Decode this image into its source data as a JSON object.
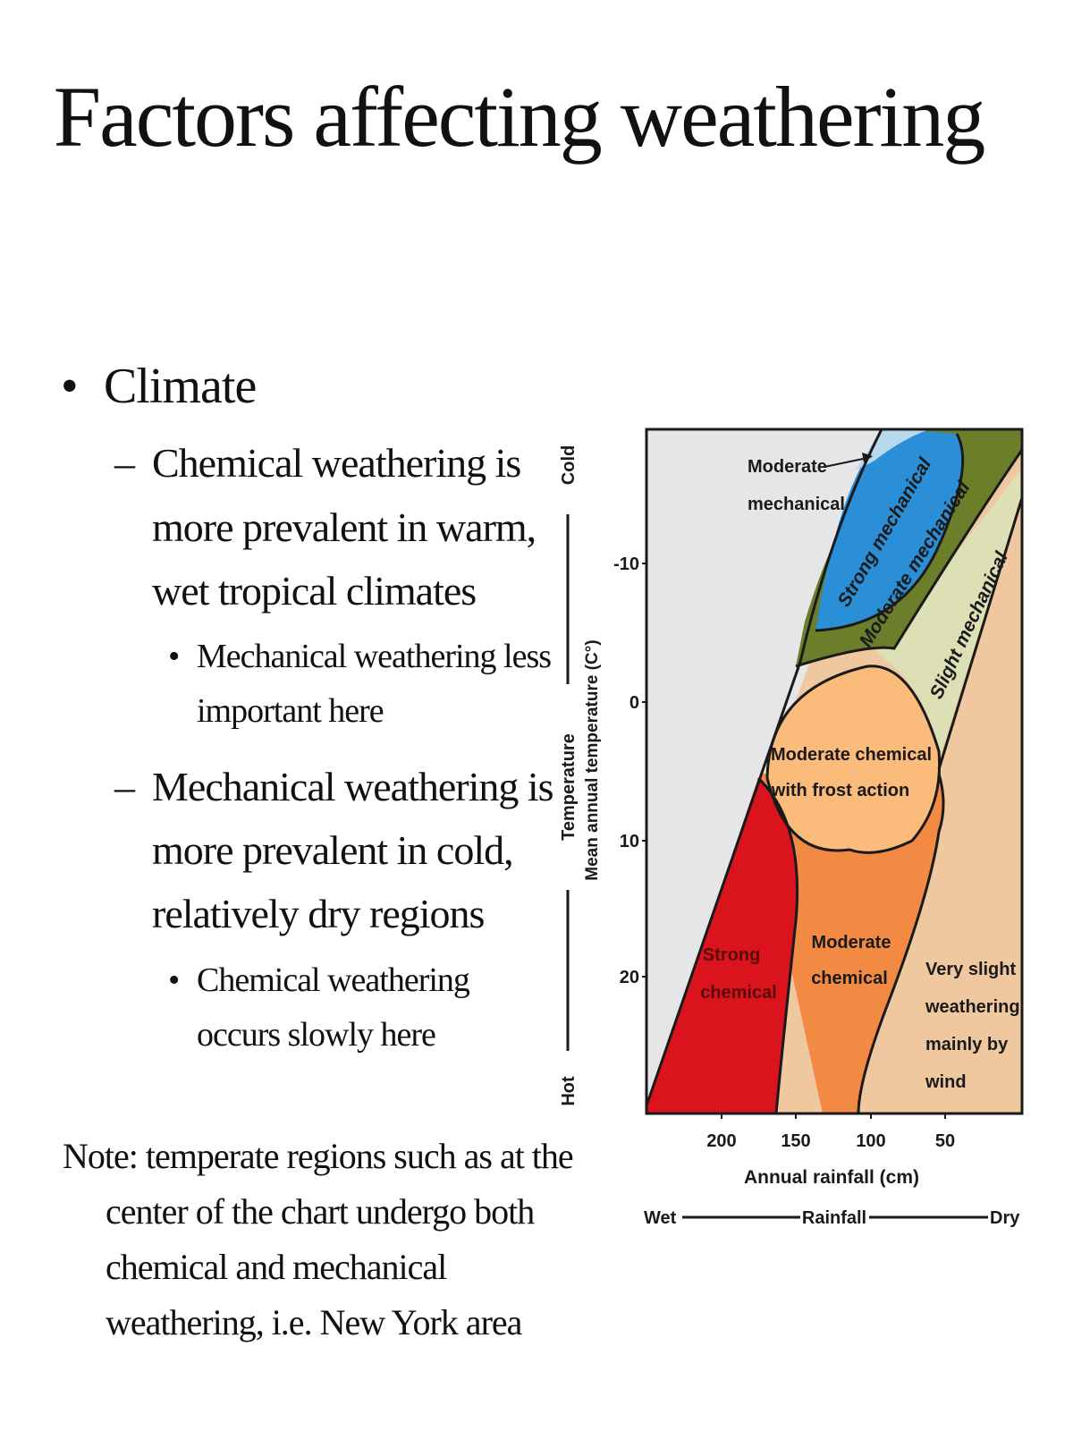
{
  "title": "Factors affecting weathering",
  "bullets": {
    "climate": "Climate",
    "chemical": "Chemical weathering is more prevalent in warm, wet tropical climates",
    "chemical_sub": "Mechanical weathering less important here",
    "mechanical": "Mechanical weathering is more prevalent in cold, relatively dry regions",
    "mechanical_sub": "Chemical weathering occurs slowly here"
  },
  "note": "Note:  temperate regions such as at the center of the chart undergo both chemical and mechanical weathering, i.e. New York area",
  "chart": {
    "y_axis_label": "Mean annual temperature (C°)",
    "y_axis_scale": {
      "hot": "Hot",
      "temperature": "Temperature",
      "cold": "Cold"
    },
    "y_ticks": [
      "-10",
      "0",
      "10",
      "20"
    ],
    "x_ticks": [
      "200",
      "150",
      "100",
      "50"
    ],
    "x_axis_label": "Annual rainfall (cm)",
    "x_axis_scale": {
      "wet": "Wet",
      "rainfall": "Rainfall",
      "dry": "Dry"
    },
    "regions": {
      "moderate_mechanical_1": "Moderate",
      "moderate_mechanical_2": "mechanical",
      "strong_mechanical": "Strong mechanical",
      "moderate_mechanical_band": "Moderate mechanical",
      "slight_mechanical": "Slight mechanical",
      "frost_1": "Moderate chemical",
      "frost_2": "with frost action",
      "strong_chemical_1": "Strong",
      "strong_chemical_2": "chemical",
      "moderate_chemical_1": "Moderate",
      "moderate_chemical_2": "chemical",
      "very_slight_1": "Very slight",
      "very_slight_2": "weathering",
      "very_slight_3": "mainly by",
      "very_slight_4": "wind"
    },
    "colors": {
      "background": "#e6e6e9",
      "very_slight": "#f0c8a0",
      "slight_mechanical": "#dde0b4",
      "moderate_mechanical": "#6b7f2a",
      "strong_mechanical": "#2a8fd6",
      "moderate_mechanical_top": "#b8d8ee",
      "frost_action": "#fbbb7b",
      "moderate_chemical": "#f28a43",
      "strong_chemical": "#d9141c"
    }
  }
}
